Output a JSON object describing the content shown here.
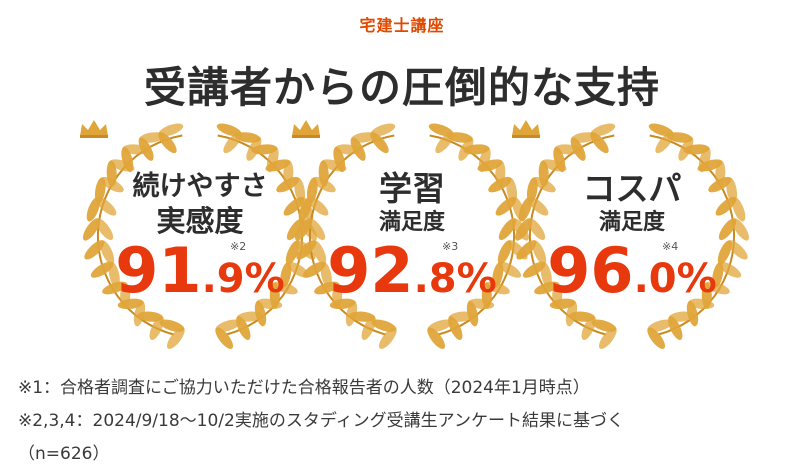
{
  "eyebrow": "宅建士講座",
  "headline": "受講者からの圧倒的な支持",
  "badges": [
    {
      "line1": "続けやすさ",
      "line2": "実感度",
      "int": "91",
      "dot": ".",
      "dec": "9",
      "pct": "%",
      "note": "※2"
    },
    {
      "line1": "学習",
      "line2": "満足度",
      "int": "92",
      "dot": ".",
      "dec": "8",
      "pct": "%",
      "note": "※3"
    },
    {
      "line1": "コスパ",
      "line2": "満足度",
      "int": "96",
      "dot": ".",
      "dec": "0",
      "pct": "%",
      "note": "※4"
    }
  ],
  "footnotes": {
    "n1": "※1：合格者調査にご協力いただけた合格報告者の人数（2024年1月時点）",
    "n2": "※2,3,4：2024/9/18～10/2実施のスタディング受講生アンケート結果に基づく",
    "n3": "（n=626）"
  },
  "colors": {
    "accent": "#e8380d",
    "gold": "#e0a53a",
    "text": "#2d2d2d"
  }
}
